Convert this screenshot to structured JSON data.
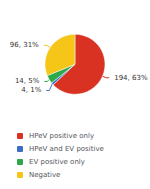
{
  "chart_data": {
    "type": "pie",
    "categories": [
      "HPeV positive only",
      "HPeV and EV positive",
      "EV positive only",
      "Negative"
    ],
    "values": [
      194,
      4,
      14,
      96
    ],
    "value_labels": [
      "194, 63%",
      "4, 1%",
      "14, 5%",
      "96, 31%"
    ],
    "colors": [
      "#d93222",
      "#3a6fc4",
      "#2da84a",
      "#f5c518"
    ],
    "legend": "bottom"
  }
}
